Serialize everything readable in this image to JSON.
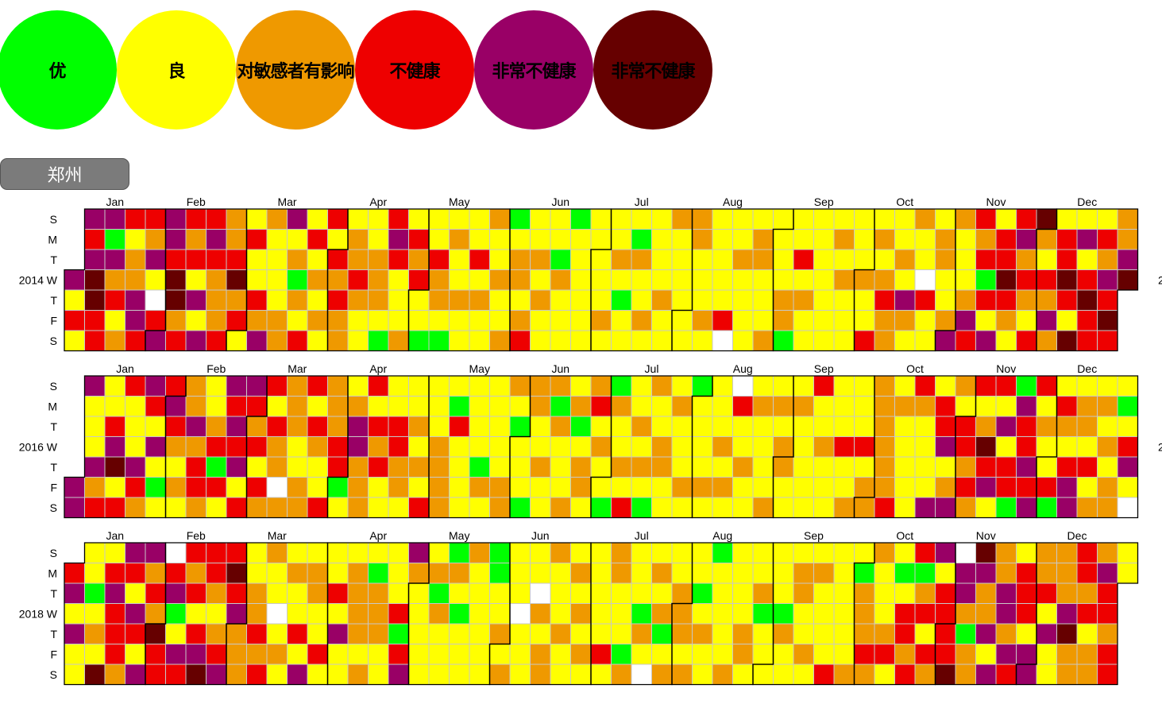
{
  "legend": [
    {
      "label": "优",
      "color": "#00ff00"
    },
    {
      "label": "良",
      "color": "#ffff00"
    },
    {
      "label": "对敏感者有影响",
      "color": "#ef9900"
    },
    {
      "label": "不健康",
      "color": "#ee0000"
    },
    {
      "label": "非常不健康",
      "color": "#990066"
    },
    {
      "label": "非常不健康",
      "color": "#660000"
    }
  ],
  "city": "郑州",
  "chart_data": {
    "type": "heatmap",
    "calendars": [
      {
        "year_label": "2014 W",
        "right_label": "2"
      },
      {
        "year_label": "2016 W",
        "right_label": "2"
      },
      {
        "year_label": "2018 W",
        "right_label": ""
      }
    ],
    "months": [
      "Jan",
      "Feb",
      "Mar",
      "Apr",
      "May",
      "Jun",
      "Jul",
      "Aug",
      "Sep",
      "Oct",
      "Nov",
      "Dec"
    ],
    "weekdays": [
      "S",
      "M",
      "T",
      "W",
      "T",
      "F",
      "S"
    ],
    "color_scale": [
      "#00ff00",
      "#ffff00",
      "#ef9900",
      "#ee0000",
      "#990066",
      "#660000"
    ],
    "missing_color": "#ffffff"
  }
}
